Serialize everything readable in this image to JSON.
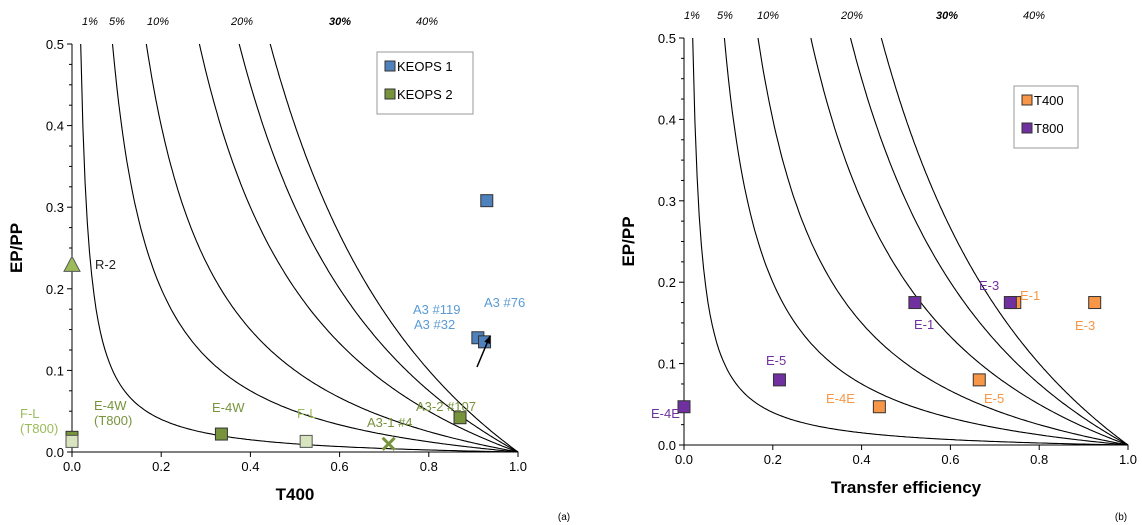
{
  "panel_captions": [
    "(a)",
    "(b)"
  ],
  "chart_data": [
    {
      "type": "scatter",
      "xlabel": "T400",
      "ylabel": "EP/PP",
      "xlim": [
        0,
        1
      ],
      "ylim": [
        0,
        0.5
      ],
      "xticks": [
        "0.0",
        "0.2",
        "0.4",
        "0.6",
        "0.8",
        "1.0"
      ],
      "yticks": [
        "0.0",
        "0.1",
        "0.2",
        "0.3",
        "0.4",
        "0.5"
      ],
      "grid": false,
      "legend_position": "top-right",
      "contour_labels": [
        "1%",
        "5%",
        "10%",
        "20%",
        "30%",
        "40%"
      ],
      "contour_values": [
        0.01,
        0.05,
        0.1,
        0.2,
        0.3,
        0.4
      ],
      "contour_bold": [
        "30%"
      ],
      "series": [
        {
          "name": "KEOPS 1",
          "color": "#4f81bd",
          "points": [
            {
              "x": 0.93,
              "y": 0.308,
              "label": "A3 #119"
            },
            {
              "x": 0.91,
              "y": 0.14,
              "label": "A3 #32"
            },
            {
              "x": 0.925,
              "y": 0.135,
              "label": "A3 #76"
            }
          ]
        },
        {
          "name": "KEOPS 2",
          "color": "#77933c",
          "points": [
            {
              "x": 0.87,
              "y": 0.042,
              "label": "A3-2 #107"
            },
            {
              "x": 0.335,
              "y": 0.022,
              "label": "E-4W"
            },
            {
              "x": 0.0,
              "y": 0.018,
              "label": "E-4W\n(T800)"
            }
          ]
        }
      ],
      "extra_points": [
        {
          "x": 0.0,
          "y": 0.23,
          "marker": "triangle",
          "color": "#9bbb59",
          "label": "R-2"
        },
        {
          "x": 0.525,
          "y": 0.013,
          "marker": "square",
          "color": "#d7e4bd",
          "label": "F-L"
        },
        {
          "x": 0.0,
          "y": 0.013,
          "marker": "square",
          "color": "#d7e4bd",
          "label": "F-L\n(T800)"
        },
        {
          "x": 0.71,
          "y": 0.01,
          "marker": "x",
          "color": "#77933c",
          "label": "A3-1 #4"
        }
      ]
    },
    {
      "type": "scatter",
      "xlabel": "Transfer efficiency",
      "ylabel": "EP/PP",
      "xlim": [
        0,
        1
      ],
      "ylim": [
        0,
        0.5
      ],
      "xticks": [
        "0.0",
        "0.2",
        "0.4",
        "0.6",
        "0.8",
        "1.0"
      ],
      "yticks": [
        "0.0",
        "0.1",
        "0.2",
        "0.3",
        "0.4",
        "0.5"
      ],
      "grid": false,
      "legend_position": "top-right",
      "contour_labels": [
        "1%",
        "5%",
        "10%",
        "20%",
        "30%",
        "40%"
      ],
      "contour_values": [
        0.01,
        0.05,
        0.1,
        0.2,
        0.3,
        0.4
      ],
      "contour_bold": [
        "30%"
      ],
      "series": [
        {
          "name": "T400",
          "color": "#f79646",
          "points": [
            {
              "x": 0.925,
              "y": 0.175,
              "label": "E-3"
            },
            {
              "x": 0.745,
              "y": 0.175,
              "label": "E-1"
            },
            {
              "x": 0.665,
              "y": 0.08,
              "label": "E-5"
            },
            {
              "x": 0.44,
              "y": 0.047,
              "label": "E-4E"
            }
          ]
        },
        {
          "name": "T800",
          "color": "#7030a0",
          "points": [
            {
              "x": 0.52,
              "y": 0.175,
              "label": "E-1"
            },
            {
              "x": 0.735,
              "y": 0.175,
              "label": "E-3"
            },
            {
              "x": 0.215,
              "y": 0.08,
              "label": "E-5"
            },
            {
              "x": 0.0,
              "y": 0.047,
              "label": "E-4E"
            }
          ]
        }
      ]
    }
  ]
}
